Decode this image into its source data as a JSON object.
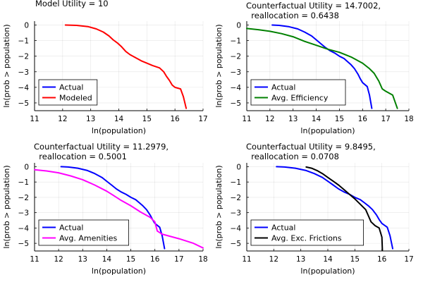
{
  "chart_data": [
    {
      "type": "line",
      "title_lines": [
        "Model Utility = 10"
      ],
      "xlabel": "ln(population)",
      "ylabel": "ln(prob > population)",
      "xlim": [
        11,
        17
      ],
      "ylim": [
        -5.5,
        0.25
      ],
      "xticks": [
        "11",
        "12",
        "13",
        "14",
        "15",
        "16",
        "17"
      ],
      "yticks": [
        "0",
        "-1",
        "-2",
        "-3",
        "-4",
        "-5"
      ],
      "grid": true,
      "legend_position": "bottom-left",
      "series": [
        {
          "name": "Actual",
          "color": "#0000ff",
          "in_legend": true,
          "points": []
        },
        {
          "name": "Modeled",
          "color": "#ff0000",
          "in_legend": true,
          "points": [
            [
              12.1,
              0
            ],
            [
              12.5,
              -0.02
            ],
            [
              12.9,
              -0.1
            ],
            [
              13.2,
              -0.25
            ],
            [
              13.45,
              -0.45
            ],
            [
              13.65,
              -0.7
            ],
            [
              13.8,
              -0.95
            ],
            [
              13.95,
              -1.15
            ],
            [
              14.1,
              -1.4
            ],
            [
              14.25,
              -1.7
            ],
            [
              14.4,
              -1.9
            ],
            [
              14.6,
              -2.1
            ],
            [
              14.8,
              -2.3
            ],
            [
              15.0,
              -2.45
            ],
            [
              15.2,
              -2.6
            ],
            [
              15.45,
              -2.75
            ],
            [
              15.6,
              -3.0
            ],
            [
              15.7,
              -3.3
            ],
            [
              15.8,
              -3.55
            ],
            [
              15.9,
              -3.85
            ],
            [
              16.0,
              -4.0
            ],
            [
              16.2,
              -4.1
            ],
            [
              16.3,
              -4.6
            ],
            [
              16.4,
              -5.35
            ]
          ]
        }
      ]
    },
    {
      "type": "line",
      "title_lines": [
        "Counterfactual Utility = 14.7002,",
        "  reallocation = 0.6438"
      ],
      "xlabel": "ln(population)",
      "ylabel": "ln(prob > population)",
      "xlim": [
        11,
        18
      ],
      "ylim": [
        -5.5,
        0.25
      ],
      "xticks": [
        "11",
        "12",
        "13",
        "14",
        "15",
        "16",
        "17",
        "18"
      ],
      "yticks": [
        "0",
        "-1",
        "-2",
        "-3",
        "-4",
        "-5"
      ],
      "grid": true,
      "legend_position": "bottom-left",
      "series": [
        {
          "name": "Actual",
          "color": "#0000ff",
          "in_legend": true,
          "points": [
            [
              12.1,
              0
            ],
            [
              12.4,
              -0.02
            ],
            [
              12.8,
              -0.1
            ],
            [
              13.2,
              -0.25
            ],
            [
              13.5,
              -0.45
            ],
            [
              13.8,
              -0.7
            ],
            [
              14.0,
              -0.95
            ],
            [
              14.2,
              -1.2
            ],
            [
              14.4,
              -1.45
            ],
            [
              14.6,
              -1.65
            ],
            [
              14.8,
              -1.8
            ],
            [
              15.0,
              -2.0
            ],
            [
              15.2,
              -2.15
            ],
            [
              15.35,
              -2.35
            ],
            [
              15.5,
              -2.55
            ],
            [
              15.65,
              -2.8
            ],
            [
              15.8,
              -3.15
            ],
            [
              15.9,
              -3.45
            ],
            [
              16.0,
              -3.7
            ],
            [
              16.2,
              -3.95
            ],
            [
              16.3,
              -4.5
            ],
            [
              16.4,
              -5.35
            ]
          ]
        },
        {
          "name": "Avg. Efficiency",
          "color": "#008000",
          "in_legend": true,
          "points": [
            [
              11,
              -0.22
            ],
            [
              11.5,
              -0.3
            ],
            [
              12.0,
              -0.4
            ],
            [
              12.5,
              -0.55
            ],
            [
              13.0,
              -0.75
            ],
            [
              13.5,
              -1.05
            ],
            [
              14.0,
              -1.3
            ],
            [
              14.5,
              -1.55
            ],
            [
              15.0,
              -1.75
            ],
            [
              15.5,
              -2.05
            ],
            [
              16.0,
              -2.45
            ],
            [
              16.3,
              -2.8
            ],
            [
              16.5,
              -3.1
            ],
            [
              16.7,
              -3.6
            ],
            [
              16.85,
              -4.1
            ],
            [
              17.0,
              -4.25
            ],
            [
              17.3,
              -4.5
            ],
            [
              17.5,
              -5.35
            ]
          ]
        }
      ]
    },
    {
      "type": "line",
      "title_lines": [
        "Counterfactual Utility = 11.2979,",
        "  reallocation = 0.5001"
      ],
      "xlabel": "ln(population)",
      "ylabel": "ln(prob > population)",
      "xlim": [
        11,
        18
      ],
      "ylim": [
        -5.5,
        0.25
      ],
      "xticks": [
        "11",
        "12",
        "13",
        "14",
        "15",
        "16",
        "17",
        "18"
      ],
      "yticks": [
        "0",
        "-1",
        "-2",
        "-3",
        "-4",
        "-5"
      ],
      "grid": true,
      "legend_position": "bottom-left",
      "series": [
        {
          "name": "Actual",
          "color": "#0000ff",
          "in_legend": true,
          "points": [
            [
              12.1,
              0
            ],
            [
              12.4,
              -0.02
            ],
            [
              12.8,
              -0.1
            ],
            [
              13.2,
              -0.25
            ],
            [
              13.5,
              -0.45
            ],
            [
              13.8,
              -0.7
            ],
            [
              14.0,
              -0.95
            ],
            [
              14.2,
              -1.2
            ],
            [
              14.4,
              -1.45
            ],
            [
              14.6,
              -1.65
            ],
            [
              14.8,
              -1.8
            ],
            [
              15.0,
              -2.0
            ],
            [
              15.2,
              -2.15
            ],
            [
              15.35,
              -2.35
            ],
            [
              15.5,
              -2.55
            ],
            [
              15.65,
              -2.8
            ],
            [
              15.8,
              -3.15
            ],
            [
              15.9,
              -3.45
            ],
            [
              16.0,
              -3.7
            ],
            [
              16.2,
              -3.95
            ],
            [
              16.3,
              -4.5
            ],
            [
              16.4,
              -5.35
            ]
          ]
        },
        {
          "name": "Avg. Amenities",
          "color": "#ff00ff",
          "in_legend": true,
          "points": [
            [
              11,
              -0.2
            ],
            [
              11.5,
              -0.28
            ],
            [
              12.0,
              -0.4
            ],
            [
              12.5,
              -0.6
            ],
            [
              13.0,
              -0.85
            ],
            [
              13.5,
              -1.2
            ],
            [
              14.0,
              -1.6
            ],
            [
              14.3,
              -1.9
            ],
            [
              14.6,
              -2.2
            ],
            [
              15.0,
              -2.55
            ],
            [
              15.4,
              -2.95
            ],
            [
              15.8,
              -3.3
            ],
            [
              16.0,
              -3.6
            ],
            [
              16.1,
              -4.2
            ],
            [
              16.3,
              -4.4
            ],
            [
              17.0,
              -4.7
            ],
            [
              17.6,
              -5.0
            ],
            [
              18,
              -5.3
            ]
          ]
        }
      ]
    },
    {
      "type": "line",
      "title_lines": [
        "Counterfactual Utility = 9.8495,",
        "  reallocation = 0.0708"
      ],
      "xlabel": "ln(population)",
      "ylabel": "ln(prob > population)",
      "xlim": [
        11,
        17
      ],
      "ylim": [
        -5.5,
        0.25
      ],
      "xticks": [
        "11",
        "12",
        "13",
        "14",
        "15",
        "16",
        "17"
      ],
      "yticks": [
        "0",
        "-1",
        "-2",
        "-3",
        "-4",
        "-5"
      ],
      "grid": true,
      "legend_position": "bottom-left",
      "series": [
        {
          "name": "Actual",
          "color": "#0000ff",
          "in_legend": true,
          "points": [
            [
              12.1,
              0
            ],
            [
              12.4,
              -0.02
            ],
            [
              12.8,
              -0.1
            ],
            [
              13.2,
              -0.25
            ],
            [
              13.5,
              -0.45
            ],
            [
              13.8,
              -0.7
            ],
            [
              14.0,
              -0.95
            ],
            [
              14.2,
              -1.2
            ],
            [
              14.4,
              -1.45
            ],
            [
              14.6,
              -1.65
            ],
            [
              14.8,
              -1.8
            ],
            [
              15.0,
              -2.0
            ],
            [
              15.2,
              -2.15
            ],
            [
              15.35,
              -2.35
            ],
            [
              15.5,
              -2.55
            ],
            [
              15.65,
              -2.8
            ],
            [
              15.8,
              -3.15
            ],
            [
              15.9,
              -3.45
            ],
            [
              16.0,
              -3.7
            ],
            [
              16.2,
              -3.95
            ],
            [
              16.3,
              -4.5
            ],
            [
              16.4,
              -5.35
            ]
          ]
        },
        {
          "name": "Avg. Exc. Frictions",
          "color": "#000000",
          "in_legend": true,
          "points": [
            [
              13.2,
              -0.02
            ],
            [
              13.4,
              -0.1
            ],
            [
              13.6,
              -0.25
            ],
            [
              13.8,
              -0.45
            ],
            [
              14.0,
              -0.7
            ],
            [
              14.2,
              -0.95
            ],
            [
              14.4,
              -1.2
            ],
            [
              14.6,
              -1.5
            ],
            [
              14.8,
              -1.8
            ],
            [
              15.0,
              -2.1
            ],
            [
              15.2,
              -2.45
            ],
            [
              15.4,
              -2.8
            ],
            [
              15.5,
              -3.2
            ],
            [
              15.6,
              -3.6
            ],
            [
              15.75,
              -3.85
            ],
            [
              15.9,
              -4.0
            ],
            [
              16.0,
              -4.6
            ],
            [
              16.02,
              -5.45
            ]
          ]
        }
      ]
    }
  ]
}
